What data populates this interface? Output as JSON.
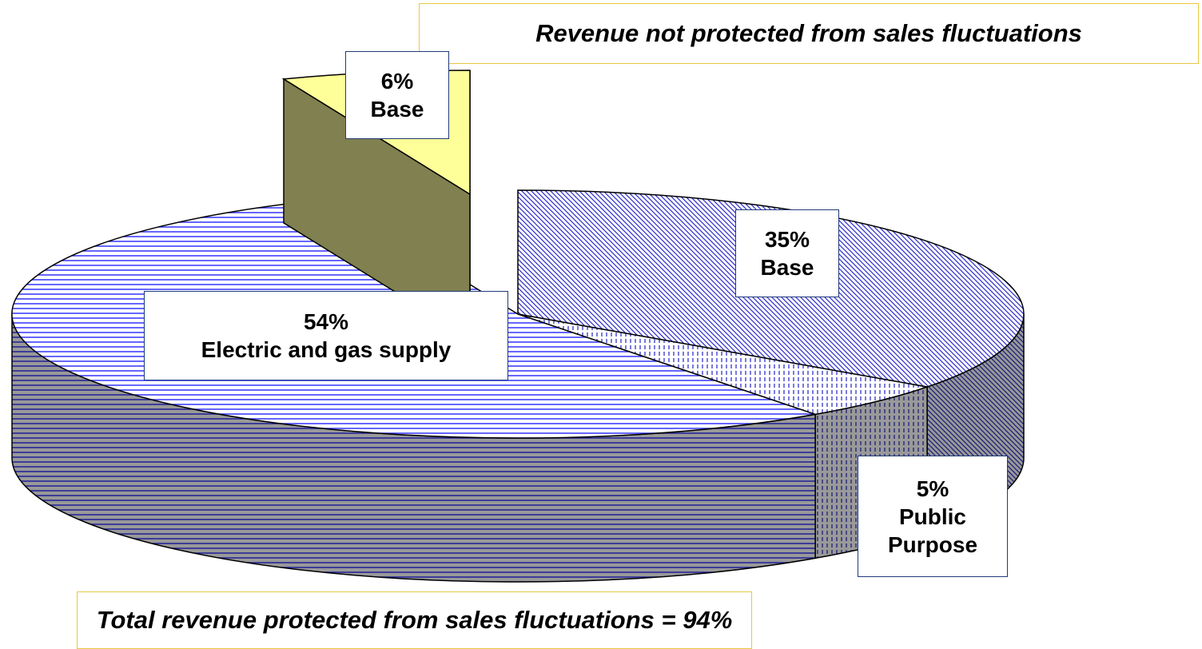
{
  "chart_data": {
    "type": "pie",
    "categories": [
      "Base",
      "Public Purpose",
      "Electric and gas supply",
      "Base"
    ],
    "values": [
      35,
      5,
      54,
      6
    ],
    "value_labels": [
      "35%",
      "5%",
      "54%",
      "6%"
    ],
    "colors": [
      "#3333cc",
      "#3333cc",
      "#3333ff",
      "#ffff99"
    ],
    "annotations": [
      "Revenue not protected from sales fluctuations",
      "Total revenue protected from sales fluctuations = 94%"
    ]
  }
}
